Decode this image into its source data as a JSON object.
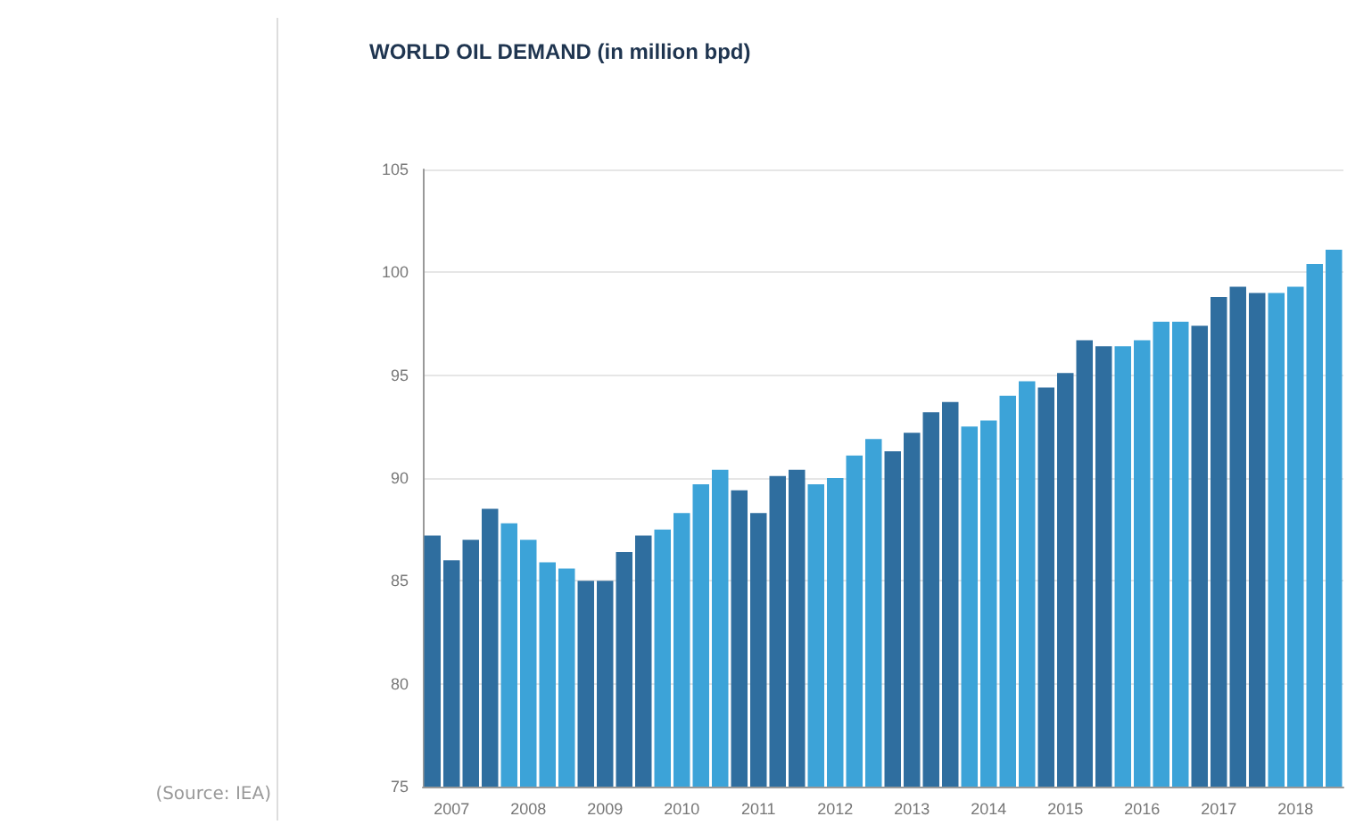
{
  "chart_data": {
    "type": "bar",
    "title": "WORLD OIL DEMAND (in million bpd)",
    "categories": [
      null,
      "2007",
      null,
      null,
      null,
      "2008",
      null,
      null,
      null,
      "2009",
      null,
      null,
      null,
      "2010",
      null,
      null,
      null,
      "2011",
      null,
      null,
      null,
      "2012",
      null,
      null,
      null,
      "2013",
      null,
      null,
      null,
      "2014",
      null,
      null,
      null,
      "2015",
      null,
      null,
      null,
      "2016",
      null,
      null,
      null,
      "2017",
      null,
      null,
      null,
      "2018",
      null,
      null
    ],
    "values": [
      87.2,
      86.0,
      87.0,
      88.5,
      87.8,
      87.0,
      85.9,
      85.6,
      85.0,
      85.0,
      86.4,
      87.2,
      87.5,
      88.3,
      89.7,
      90.4,
      89.4,
      88.3,
      90.1,
      90.4,
      89.7,
      90.0,
      91.1,
      91.9,
      91.3,
      92.2,
      93.2,
      93.7,
      92.5,
      92.8,
      94.0,
      94.7,
      94.4,
      95.1,
      96.7,
      96.4,
      96.4,
      96.7,
      97.6,
      97.6,
      97.4,
      98.8,
      99.3,
      99.0,
      99.0,
      99.3,
      100.4,
      101.1
    ],
    "colors": [
      "#2f6e9f",
      "#2f6e9f",
      "#2f6e9f",
      "#2f6e9f",
      "#3ca3d8",
      "#3ca3d8",
      "#3ca3d8",
      "#3ca3d8",
      "#2f6e9f",
      "#2f6e9f",
      "#2f6e9f",
      "#2f6e9f",
      "#3ca3d8",
      "#3ca3d8",
      "#3ca3d8",
      "#3ca3d8",
      "#2f6e9f",
      "#2f6e9f",
      "#2f6e9f",
      "#2f6e9f",
      "#3ca3d8",
      "#3ca3d8",
      "#3ca3d8",
      "#3ca3d8",
      "#2f6e9f",
      "#2f6e9f",
      "#2f6e9f",
      "#2f6e9f",
      "#3ca3d8",
      "#3ca3d8",
      "#3ca3d8",
      "#3ca3d8",
      "#2f6e9f",
      "#2f6e9f",
      "#2f6e9f",
      "#2f6e9f",
      "#3ca3d8",
      "#3ca3d8",
      "#3ca3d8",
      "#3ca3d8",
      "#2f6e9f",
      "#2f6e9f",
      "#2f6e9f",
      "#2f6e9f",
      "#3ca3d8",
      "#3ca3d8",
      "#3ca3d8",
      "#3ca3d8"
    ],
    "ylim": [
      75,
      105
    ],
    "yticks": [
      75,
      80,
      85,
      90,
      95,
      100,
      105
    ],
    "grid": "y",
    "annotations": [
      "(Source: IEA)"
    ]
  }
}
